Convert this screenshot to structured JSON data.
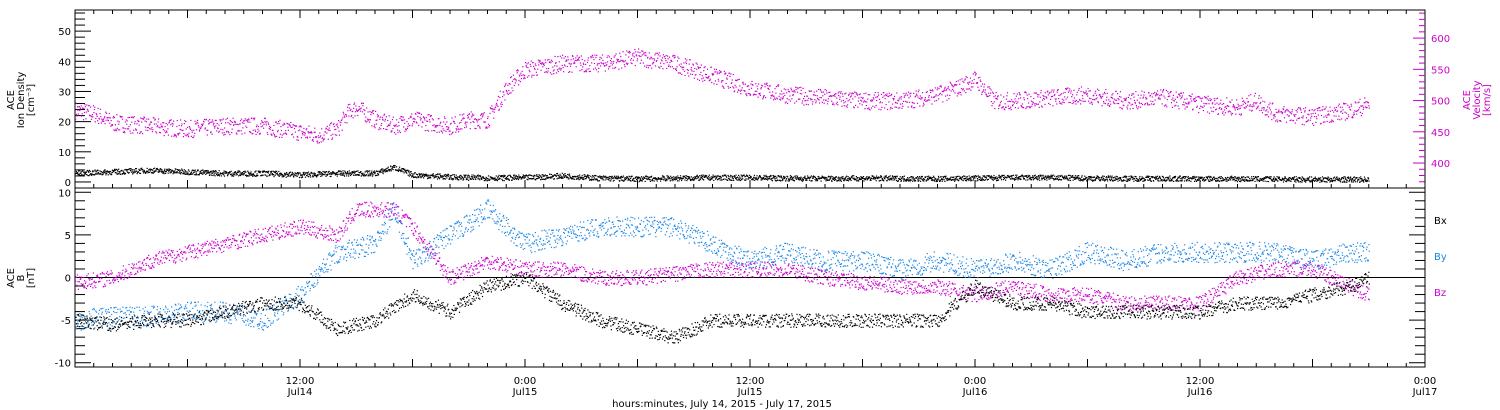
{
  "xaxis": {
    "title": "hours:minutes, July 14, 2015 - July 17, 2015",
    "range_hours": [
      0,
      72
    ],
    "ticks": [
      {
        "hour": 12,
        "time": "12:00",
        "date": "Jul14"
      },
      {
        "hour": 24,
        "time": "0:00",
        "date": "Jul15"
      },
      {
        "hour": 36,
        "time": "12:00",
        "date": "Jul15"
      },
      {
        "hour": 48,
        "time": "0:00",
        "date": "Jul16"
      },
      {
        "hour": 60,
        "time": "12:00",
        "date": "Jul16"
      },
      {
        "hour": 72,
        "time": "0:00",
        "date": "Jul17"
      }
    ]
  },
  "panels": {
    "top": {
      "left_label": [
        "ACE",
        "Ion Density",
        "[cm⁻³]"
      ],
      "right_label": [
        "ACE",
        "Velocity",
        "[km/s]"
      ],
      "left_ticks": [
        "0",
        "10",
        "20",
        "30",
        "40",
        "50"
      ],
      "right_ticks": [
        "400",
        "450",
        "500",
        "550",
        "600"
      ]
    },
    "bottom": {
      "left_label": [
        "ACE",
        "B",
        "[nT]"
      ],
      "left_ticks": [
        "-10",
        "-5",
        "0",
        "5",
        "10"
      ],
      "legend": [
        "Bx",
        "By",
        "Bz"
      ]
    }
  },
  "colors": {
    "density": "#000000",
    "velocity": "#cc00cc",
    "bx": "#000000",
    "by": "#1e88e5",
    "bz": "#cc00cc",
    "axis": "#000000"
  },
  "chart_data": [
    {
      "type": "scatter",
      "x_unit": "hours since 2015-07-14 00:00",
      "xlim": [
        0,
        72
      ],
      "y_left": {
        "name": "Ion Density",
        "ylim": [
          -2,
          57
        ]
      },
      "y_right": {
        "name": "Velocity",
        "ylim": [
          360,
          645
        ]
      },
      "series": [
        {
          "name": "Ion Density",
          "axis": "left",
          "color": "#000000",
          "x": [
            0,
            2,
            4,
            6,
            8,
            10,
            12,
            14,
            16,
            17,
            18,
            20,
            22,
            24,
            26,
            28,
            30,
            32,
            34,
            36,
            38,
            40,
            42,
            44,
            46,
            48,
            50,
            52,
            54,
            56,
            58,
            60,
            62,
            64,
            66,
            68,
            69
          ],
          "y": [
            3,
            3.5,
            4,
            3.5,
            3,
            3,
            2.5,
            3,
            3,
            5,
            2.5,
            1.8,
            1.5,
            1.6,
            2.2,
            1.4,
            1.2,
            1.4,
            1.6,
            1.6,
            1.4,
            1.3,
            1.4,
            1.3,
            1.2,
            1.4,
            1.6,
            1.6,
            1.4,
            1.3,
            1.3,
            1.2,
            1.2,
            1.1,
            1,
            1,
            1
          ]
        },
        {
          "name": "Velocity",
          "axis": "right",
          "color": "#cc00cc",
          "x": [
            0,
            1,
            2,
            4,
            6,
            8,
            10,
            12,
            13,
            14,
            14.5,
            15,
            16,
            17,
            18,
            19,
            20,
            21,
            22,
            23,
            24,
            25,
            26,
            28,
            30,
            32,
            34,
            36,
            38,
            40,
            42,
            44,
            46,
            47,
            48,
            49,
            50,
            52,
            54,
            56,
            58,
            60,
            62,
            63,
            64,
            66,
            68,
            69
          ],
          "y": [
            485,
            480,
            465,
            460,
            455,
            460,
            460,
            450,
            445,
            455,
            480,
            490,
            470,
            460,
            470,
            465,
            460,
            470,
            470,
            520,
            550,
            555,
            560,
            560,
            570,
            560,
            540,
            520,
            510,
            505,
            500,
            500,
            510,
            520,
            535,
            500,
            500,
            505,
            510,
            500,
            505,
            495,
            490,
            500,
            480,
            475,
            485,
            495
          ]
        }
      ]
    },
    {
      "type": "scatter",
      "x_unit": "hours since 2015-07-14 00:00",
      "xlim": [
        0,
        72
      ],
      "ylabel": "B",
      "ylim": [
        -10.5,
        10.5
      ],
      "series": [
        {
          "name": "Bx",
          "color": "#000000",
          "x": [
            0,
            2,
            4,
            6,
            8,
            10,
            12,
            14,
            16,
            18,
            20,
            22,
            24,
            26,
            28,
            30,
            32,
            34,
            36,
            38,
            40,
            42,
            44,
            46,
            48,
            50,
            52,
            54,
            56,
            58,
            60,
            62,
            64,
            66,
            68,
            69
          ],
          "y": [
            -5,
            -5.5,
            -5,
            -5,
            -4,
            -3,
            -3,
            -6,
            -5,
            -2,
            -4,
            -1,
            0,
            -3,
            -5,
            -6,
            -7,
            -5,
            -5,
            -5,
            -5,
            -5,
            -5,
            -5,
            -1,
            -3,
            -3,
            -4,
            -4,
            -4,
            -4,
            -3,
            -3,
            -2,
            -1,
            0
          ]
        },
        {
          "name": "By",
          "color": "#1e88e5",
          "x": [
            0,
            2,
            4,
            6,
            8,
            10,
            12,
            14,
            16,
            17,
            18,
            20,
            22,
            24,
            26,
            28,
            30,
            32,
            34,
            36,
            38,
            40,
            42,
            44,
            46,
            48,
            50,
            52,
            54,
            56,
            58,
            60,
            62,
            64,
            66,
            68,
            69
          ],
          "y": [
            -5,
            -4.5,
            -4.5,
            -4,
            -4,
            -5,
            -2,
            3,
            4,
            8,
            2,
            5,
            8,
            4,
            5,
            6,
            6,
            6,
            4,
            2,
            3,
            2,
            2,
            1,
            2,
            1,
            2,
            1,
            3,
            2,
            3,
            3,
            3,
            3,
            2,
            3,
            3
          ]
        },
        {
          "name": "Bz",
          "color": "#cc00cc",
          "x": [
            0,
            2,
            4,
            6,
            8,
            10,
            12,
            14,
            15,
            16,
            17,
            18,
            20,
            22,
            24,
            26,
            28,
            30,
            32,
            34,
            36,
            38,
            40,
            42,
            44,
            46,
            48,
            50,
            52,
            54,
            56,
            58,
            60,
            62,
            64,
            66,
            68,
            69
          ],
          "y": [
            -0.5,
            0,
            2,
            3,
            4,
            5,
            6,
            5,
            8,
            8,
            8,
            6,
            0,
            2,
            1,
            1,
            0,
            0,
            0.5,
            1,
            1,
            1,
            0,
            -0.5,
            -1,
            -1,
            -2,
            -1,
            -2,
            -2,
            -3,
            -3,
            -3,
            0,
            1,
            1,
            -1,
            -2
          ]
        }
      ]
    }
  ]
}
